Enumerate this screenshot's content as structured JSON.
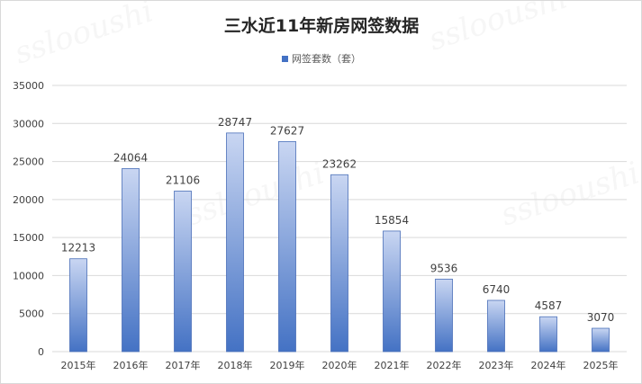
{
  "chart_data": {
    "type": "bar",
    "title": "三水近11年新房网签数据",
    "legend": [
      "网签套数（套）"
    ],
    "legend_position": "top",
    "categories": [
      "2015年",
      "2016年",
      "2017年",
      "2018年",
      "2019年",
      "2020年",
      "2021年",
      "2022年",
      "2023年",
      "2024年",
      "2025年"
    ],
    "series": [
      {
        "name": "网签套数（套）",
        "values": [
          12213,
          24064,
          21106,
          28747,
          27627,
          23262,
          15854,
          9536,
          6740,
          4587,
          3070
        ]
      }
    ],
    "ylim": [
      0,
      35000
    ],
    "yticks": [
      0,
      5000,
      10000,
      15000,
      20000,
      25000,
      30000,
      35000
    ],
    "grid": true,
    "colors": {
      "bar_top": "#c9d6f2",
      "bar_bottom": "#4472c4",
      "bar_edge": "#4a6fb8",
      "grid": "#d9d9d9",
      "text": "#404040",
      "title": "#262626"
    }
  },
  "watermark": "sslooushi"
}
